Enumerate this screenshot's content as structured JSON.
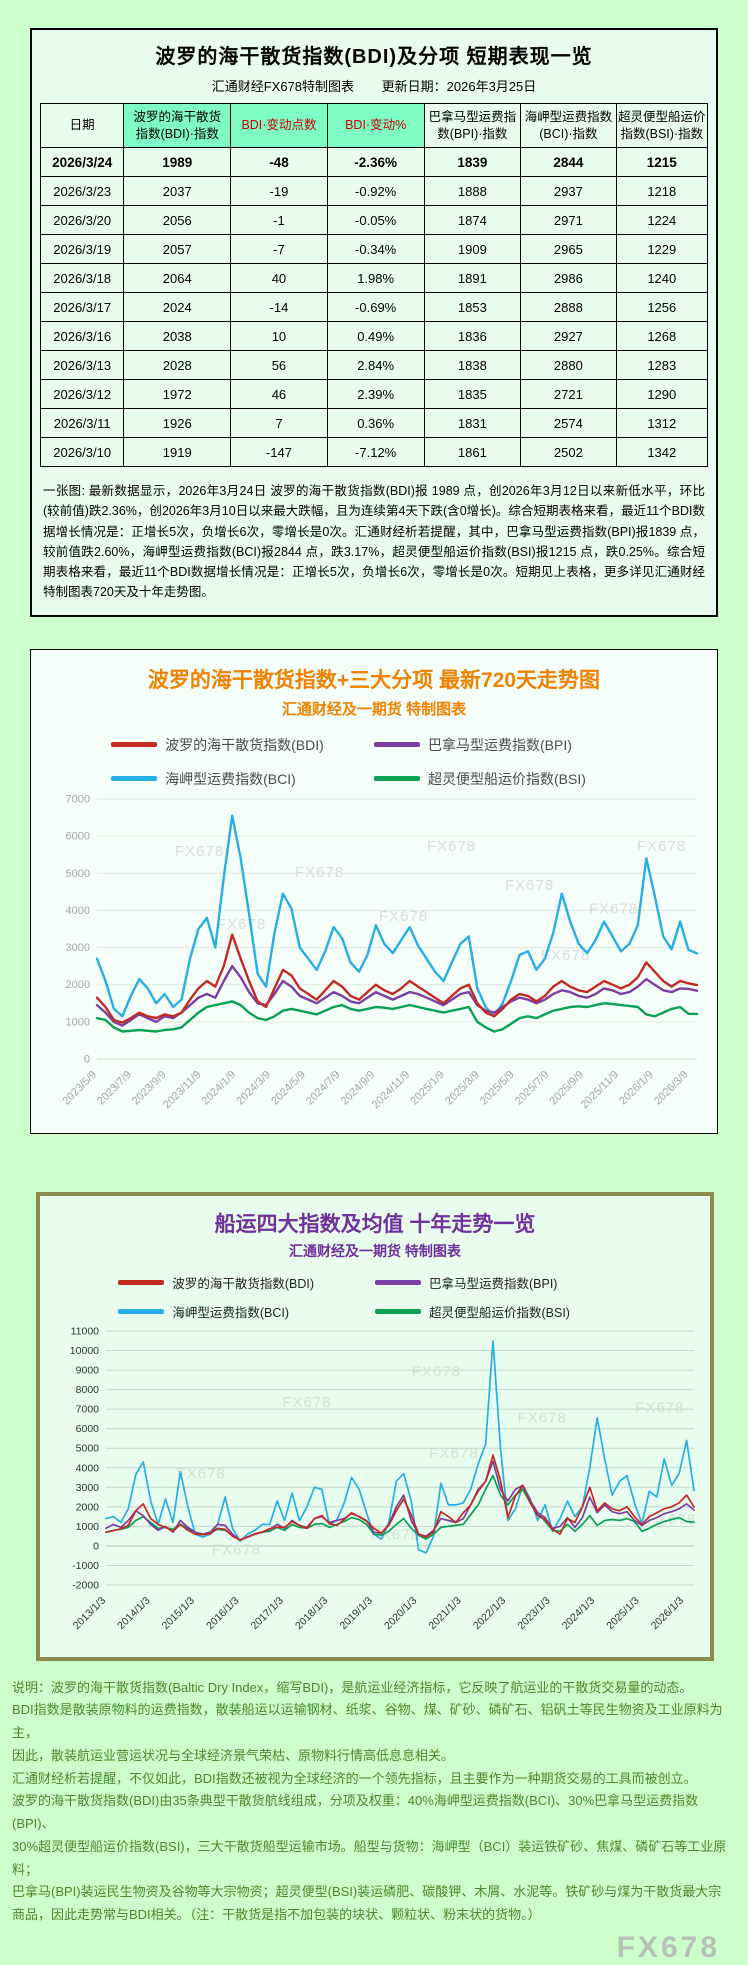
{
  "page": {
    "watermark": "FX678"
  },
  "top_panel": {
    "title": "波罗的海干散货指数(BDI)及分项  短期表现一览",
    "subtitle_left": "汇通财经FX678特制图表",
    "subtitle_right": "更新日期：2026年3月25日",
    "table": {
      "headers": [
        "日期",
        "波罗的海干散货\n指数(BDI)·指数",
        "BDI·变动点数",
        "BDI·变动%",
        "巴拿马型运费指\n数(BPI)·指数",
        "海岬型运费指数\n(BCI)·指数",
        "超灵便型船运价\n指数(BSI)·指数"
      ],
      "rows": [
        [
          "2026/3/24",
          "1989",
          "-48",
          "-2.36%",
          "1839",
          "2844",
          "1215"
        ],
        [
          "2026/3/23",
          "2037",
          "-19",
          "-0.92%",
          "1888",
          "2937",
          "1218"
        ],
        [
          "2026/3/20",
          "2056",
          "-1",
          "-0.05%",
          "1874",
          "2971",
          "1224"
        ],
        [
          "2026/3/19",
          "2057",
          "-7",
          "-0.34%",
          "1909",
          "2965",
          "1229"
        ],
        [
          "2026/3/18",
          "2064",
          "40",
          "1.98%",
          "1891",
          "2986",
          "1240"
        ],
        [
          "2026/3/17",
          "2024",
          "-14",
          "-0.69%",
          "1853",
          "2888",
          "1256"
        ],
        [
          "2026/3/16",
          "2038",
          "10",
          "0.49%",
          "1836",
          "2927",
          "1268"
        ],
        [
          "2026/3/13",
          "2028",
          "56",
          "2.84%",
          "1838",
          "2880",
          "1283"
        ],
        [
          "2026/3/12",
          "1972",
          "46",
          "2.39%",
          "1835",
          "2721",
          "1290"
        ],
        [
          "2026/3/11",
          "1926",
          "7",
          "0.36%",
          "1831",
          "2574",
          "1312"
        ],
        [
          "2026/3/10",
          "1919",
          "-147",
          "-7.12%",
          "1861",
          "2502",
          "1342"
        ]
      ]
    },
    "summary": "一张图: 最新数据显示，2026年3月24日 波罗的海干散货指数(BDI)报 1989 点，创2026年3月12日以来新低水平，环比(较前值)跌2.36%，创2026年3月10日以来最大跌幅，且为连续第4天下跌(含0增长)。综合短期表格来看，最近11个BDI数据增长情况是：正增长5次，负增长6次，零增长是0次。汇通财经析若提醒，其中，巴拿马型运费指数(BPI)报1839 点，较前值跌2.60%，海岬型运费指数(BCI)报2844 点，跌3.17%，超灵便型船运价指数(BSI)报1215 点，跌0.25%。综合短期表格来看，最近11个BDI数据增长情况是：正增长5次，负增长6次，零增长是0次。短期见上表格，更多详见汇通财经特制图表720天及十年走势图。"
  },
  "chart_data": [
    {
      "type": "line",
      "title": "波罗的海干散货指数+三大分项  最新720天走势图",
      "subtitle": "汇通财经及一期货  特制图表",
      "legend_position": "top",
      "grid": true,
      "ylim": [
        0,
        7000
      ],
      "ytick_step": 1000,
      "xticks": [
        "2023/5/9",
        "2023/7/9",
        "2023/9/9",
        "2023/11/9",
        "2024/1/9",
        "2024/3/9",
        "2024/5/9",
        "2024/7/9",
        "2024/9/9",
        "2024/11/9",
        "2025/1/9",
        "2025/3/9",
        "2025/5/9",
        "2025/7/9",
        "2025/9/9",
        "2025/11/9",
        "2026/1/9",
        "2026/3/9"
      ],
      "xtick_span": 0.986,
      "watermark": "FX678",
      "watermark_positions": [
        [
          0.13,
          0.22
        ],
        [
          0.33,
          0.3
        ],
        [
          0.2,
          0.5
        ],
        [
          0.55,
          0.2
        ],
        [
          0.47,
          0.47
        ],
        [
          0.68,
          0.35
        ],
        [
          0.82,
          0.44
        ],
        [
          0.9,
          0.2
        ],
        [
          0.74,
          0.62
        ]
      ],
      "style": {
        "grid_color": "#dfe7e0",
        "ytick_color": "#a6a6a6",
        "xtick_color": "#a6a6a6",
        "tick_font": 11,
        "line_width": 2.4,
        "watermark_color": "#d9d9d9"
      },
      "series": [
        {
          "name": "波罗的海干散货指数(BDI)",
          "color": "#c42a22",
          "values": [
            1650,
            1400,
            1050,
            980,
            1100,
            1250,
            1150,
            1100,
            1200,
            1150,
            1250,
            1600,
            1900,
            2100,
            1950,
            2500,
            3350,
            2700,
            2100,
            1550,
            1400,
            1900,
            2400,
            2250,
            1900,
            1750,
            1600,
            1850,
            2100,
            1950,
            1700,
            1600,
            1800,
            2000,
            1850,
            1750,
            1900,
            2100,
            1950,
            1800,
            1650,
            1500,
            1700,
            1900,
            2000,
            1500,
            1250,
            1150,
            1350,
            1600,
            1750,
            1700,
            1550,
            1700,
            1950,
            2100,
            1950,
            1850,
            1800,
            1950,
            2100,
            2000,
            1900,
            2000,
            2200,
            2600,
            2350,
            2100,
            1950,
            2100,
            2037,
            1989
          ]
        },
        {
          "name": "巴拿马型运费指数(BPI)",
          "color": "#7b3fa5",
          "values": [
            1450,
            1250,
            1000,
            900,
            1050,
            1200,
            1100,
            1000,
            1150,
            1100,
            1250,
            1450,
            1650,
            1750,
            1650,
            2100,
            2500,
            2200,
            1800,
            1500,
            1450,
            1750,
            2100,
            1950,
            1700,
            1600,
            1500,
            1650,
            1800,
            1700,
            1550,
            1500,
            1650,
            1800,
            1700,
            1600,
            1700,
            1800,
            1750,
            1650,
            1550,
            1450,
            1600,
            1750,
            1800,
            1450,
            1300,
            1250,
            1400,
            1550,
            1650,
            1600,
            1500,
            1600,
            1750,
            1850,
            1800,
            1700,
            1650,
            1750,
            1900,
            1850,
            1750,
            1800,
            1950,
            2150,
            2000,
            1850,
            1800,
            1900,
            1888,
            1839
          ]
        },
        {
          "name": "海岬型运费指数(BCI)",
          "color": "#27aee5",
          "values": [
            2700,
            2100,
            1350,
            1150,
            1700,
            2150,
            1900,
            1500,
            1750,
            1400,
            1600,
            2700,
            3500,
            3800,
            3000,
            4900,
            6550,
            5400,
            3900,
            2300,
            1950,
            3400,
            4450,
            4050,
            3000,
            2700,
            2400,
            2900,
            3550,
            3250,
            2600,
            2350,
            2800,
            3600,
            3100,
            2850,
            3200,
            3550,
            3050,
            2700,
            2350,
            2100,
            2600,
            3100,
            3300,
            1900,
            1400,
            1150,
            1500,
            2100,
            2800,
            2900,
            2400,
            2700,
            3400,
            4450,
            3700,
            3100,
            2850,
            3200,
            3700,
            3300,
            2900,
            3100,
            3600,
            5400,
            4400,
            3300,
            2950,
            3700,
            2937,
            2844
          ]
        },
        {
          "name": "超灵便型船运价指数(BSI)",
          "color": "#0ba155",
          "values": [
            1100,
            1050,
            850,
            740,
            760,
            780,
            760,
            740,
            780,
            800,
            850,
            1050,
            1250,
            1400,
            1450,
            1500,
            1550,
            1450,
            1250,
            1100,
            1050,
            1150,
            1300,
            1350,
            1300,
            1250,
            1200,
            1300,
            1400,
            1450,
            1350,
            1300,
            1350,
            1400,
            1380,
            1350,
            1400,
            1450,
            1400,
            1350,
            1300,
            1250,
            1300,
            1350,
            1400,
            1000,
            850,
            740,
            800,
            950,
            1100,
            1150,
            1100,
            1200,
            1300,
            1350,
            1400,
            1420,
            1400,
            1450,
            1500,
            1480,
            1450,
            1430,
            1400,
            1200,
            1150,
            1250,
            1350,
            1400,
            1218,
            1215
          ]
        }
      ],
      "draw_order": [
        2,
        3,
        1,
        0
      ]
    },
    {
      "type": "line",
      "title": "船运四大指数及均值 十年走势一览",
      "subtitle": "汇通财经及一期货 特制图表",
      "legend_position": "top",
      "grid": true,
      "ylim": [
        -2000,
        11000
      ],
      "ytick_step": 1000,
      "xticks": [
        "2013/1/3",
        "2014/1/3",
        "2015/1/3",
        "2016/1/3",
        "2017/1/3",
        "2018/1/3",
        "2019/1/3",
        "2020/1/3",
        "2021/1/3",
        "2022/1/3",
        "2023/1/3",
        "2024/1/3",
        "2025/1/3",
        "2026/1/3"
      ],
      "xtick_span": 0.983,
      "watermark": "FX678",
      "watermark_positions": [
        [
          0.12,
          0.58
        ],
        [
          0.3,
          0.3
        ],
        [
          0.52,
          0.18
        ],
        [
          0.55,
          0.5
        ],
        [
          0.7,
          0.36
        ],
        [
          0.9,
          0.32
        ],
        [
          0.45,
          0.82
        ],
        [
          0.92,
          0.76
        ],
        [
          0.18,
          0.88
        ]
      ],
      "style": {
        "grid_color": "#c3d9c8",
        "ytick_color": "#333333",
        "xtick_color": "#333333",
        "tick_font": 10.5,
        "line_width": 1.7,
        "watermark_color": "#d4ddd4"
      },
      "series": [
        {
          "name": "波罗的海干散货指数(BDI)",
          "color": "#c42a22",
          "values": [
            700,
            780,
            880,
            1050,
            1800,
            2150,
            1400,
            1100,
            950,
            750,
            1100,
            800,
            600,
            580,
            620,
            900,
            850,
            500,
            310,
            450,
            620,
            720,
            880,
            960,
            950,
            1250,
            1050,
            900,
            1400,
            1550,
            1150,
            1050,
            1350,
            1700,
            1500,
            1270,
            900,
            650,
            1050,
            1800,
            2400,
            1600,
            600,
            450,
            700,
            1750,
            1500,
            1200,
            1700,
            2100,
            2800,
            3300,
            4650,
            3350,
            1450,
            2550,
            3100,
            2200,
            1550,
            1350,
            850,
            600,
            1400,
            1200,
            2000,
            3000,
            1800,
            2200,
            1900,
            1800,
            2000,
            1500,
            1100,
            1500,
            1700,
            1900,
            2000,
            2200,
            2600,
            1989
          ]
        },
        {
          "name": "巴拿马型运费指数(BPI)",
          "color": "#7b3fa5",
          "values": [
            900,
            1100,
            950,
            1300,
            1800,
            1550,
            1100,
            800,
            1000,
            700,
            1300,
            950,
            700,
            600,
            700,
            1100,
            1050,
            600,
            300,
            450,
            600,
            700,
            850,
            1100,
            900,
            1300,
            1050,
            950,
            1400,
            1500,
            1200,
            1300,
            1400,
            1650,
            1500,
            1300,
            700,
            650,
            1100,
            2000,
            2600,
            1300,
            600,
            500,
            800,
            1400,
            1300,
            1200,
            1400,
            2100,
            2900,
            3300,
            4330,
            2900,
            2300,
            2900,
            3100,
            2300,
            1700,
            1450,
            900,
            1000,
            1450,
            950,
            1450,
            2500,
            1700,
            2100,
            1750,
            1650,
            1750,
            1300,
            1050,
            1300,
            1450,
            1650,
            1750,
            1900,
            2150,
            1839
          ]
        },
        {
          "name": "海岬型运费指数(BCI)",
          "color": "#27aee5",
          "values": [
            1400,
            1500,
            1200,
            1900,
            3650,
            4300,
            2300,
            1100,
            2400,
            1200,
            3800,
            2000,
            600,
            450,
            600,
            1100,
            2500,
            900,
            250,
            600,
            800,
            1100,
            1100,
            2300,
            1300,
            2700,
            1300,
            2000,
            3000,
            2900,
            1100,
            1300,
            2200,
            3500,
            2900,
            1700,
            600,
            350,
            1200,
            3300,
            3700,
            2300,
            -200,
            -350,
            500,
            3200,
            2100,
            2100,
            2200,
            2900,
            4200,
            5200,
            10485,
            5000,
            1300,
            1900,
            3100,
            2400,
            1300,
            2100,
            750,
            1400,
            2300,
            1500,
            2000,
            4000,
            6550,
            4450,
            2600,
            3300,
            3600,
            2200,
            1150,
            2800,
            2500,
            4450,
            3100,
            3700,
            5400,
            2844
          ]
        },
        {
          "name": "超灵便型船运价指数(BSI)",
          "color": "#0ba155",
          "values": [
            700,
            800,
            850,
            950,
            1300,
            1500,
            1200,
            900,
            950,
            850,
            1100,
            900,
            650,
            600,
            700,
            850,
            800,
            550,
            280,
            450,
            600,
            700,
            750,
            950,
            800,
            1100,
            950,
            900,
            1100,
            1150,
            950,
            1100,
            1250,
            1450,
            1350,
            1100,
            600,
            550,
            750,
            1100,
            1400,
            900,
            550,
            350,
            600,
            950,
            1000,
            1050,
            1100,
            1600,
            2100,
            2900,
            3600,
            2600,
            2100,
            2600,
            2900,
            2200,
            1700,
            1250,
            800,
            750,
            1100,
            750,
            1100,
            1550,
            1050,
            1300,
            1350,
            1300,
            1400,
            1250,
            750,
            900,
            1100,
            1250,
            1350,
            1450,
            1250,
            1215
          ]
        }
      ],
      "draw_order": [
        2,
        3,
        1,
        0
      ]
    }
  ],
  "footer": {
    "lines": [
      "说明：波罗的海干散货指数(Baltic Dry Index，缩写BDI)，是航运业经济指标，它反映了航运业的干散货交易量的动态。",
      "BDI指数是散装原物料的运费指数，散装船运以运输钢材、纸浆、谷物、煤、矿砂、磷矿石、铝矾土等民生物资及工业原料为主，",
      "因此，散装航运业营运状况与全球经济景气荣枯、原物料行情高低息息相关。",
      "汇通财经析若提醒，不仅如此，BDI指数还被视为全球经济的一个领先指标，且主要作为一种期货交易的工具而被创立。",
      "波罗的海干散货指数(BDI)由35条典型干散货航线组成，分项及权重：40%海岬型运费指数(BCI)、30%巴拿马型运费指数(BPI)、",
      "30%超灵便型船运价指数(BSI)，三大干散货船型运输市场。船型与货物：海岬型（BCI）装运铁矿砂、焦煤、磷矿石等工业原料；",
      "巴拿马(BPI)装运民生物资及谷物等大宗物资；超灵便型(BSI)装运磷肥、碳酸钾、木屑、水泥等。铁矿砂与煤为干散货最大宗",
      "商品，因此走势常与BDI相关。（注：干散货是指不加包装的块状、颗粒状、粉末状的货物。）"
    ]
  }
}
